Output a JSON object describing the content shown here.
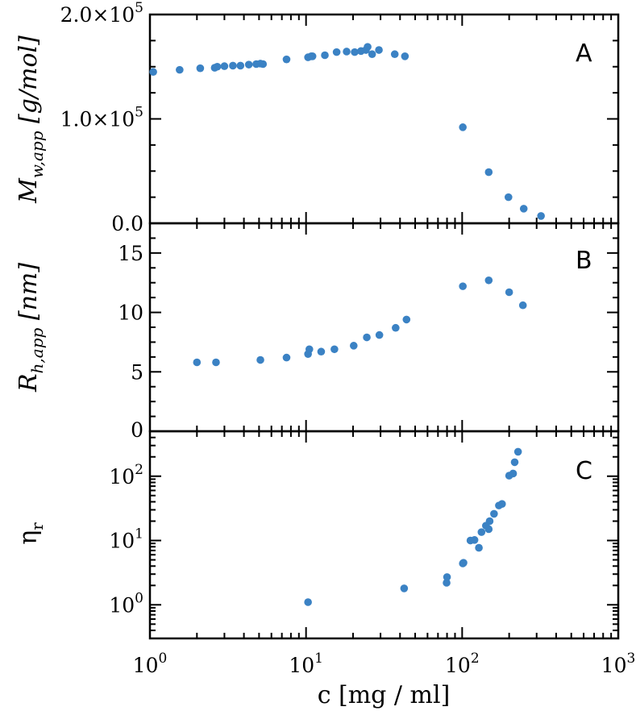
{
  "chart_data": [
    {
      "type": "scatter",
      "panel": "A",
      "ylabel": "M_{w,app} [g/mol]",
      "ylabel_parts": {
        "main": "M",
        "sub": "w,app",
        "unit": " [g/mol]"
      },
      "xscale": "log",
      "xlim": [
        1,
        1000
      ],
      "yscale": "linear",
      "ylim": [
        0,
        200000
      ],
      "yticks": [
        {
          "value": 0,
          "mantissa": "0.0",
          "exp": ""
        },
        {
          "value": 100000,
          "mantissa": "1.0×10",
          "exp": "5"
        },
        {
          "value": 200000,
          "mantissa": "2.0×10",
          "exp": "5"
        }
      ],
      "color": "#3b82c4",
      "x": [
        1.05,
        1.55,
        2.1,
        2.6,
        2.7,
        3.0,
        3.4,
        3.8,
        4.3,
        4.8,
        5.1,
        5.3,
        7.5,
        10.3,
        10.8,
        11.0,
        13.2,
        15.7,
        18.2,
        20.5,
        22.5,
        24.2,
        24.8,
        26.5,
        29.3,
        37.0,
        43.0,
        101,
        148,
        198,
        248,
        320
      ],
      "y": [
        145000,
        147000,
        148500,
        149000,
        150000,
        150500,
        151000,
        151000,
        152000,
        152500,
        153000,
        152500,
        157000,
        159000,
        160000,
        160000,
        161000,
        164000,
        164500,
        164000,
        165000,
        166000,
        169000,
        162000,
        166000,
        162000,
        160000,
        92000,
        49000,
        25000,
        14000,
        7000
      ]
    },
    {
      "type": "scatter",
      "panel": "B",
      "ylabel": "R_{h,app} [nm]",
      "ylabel_parts": {
        "main": "R",
        "sub": "h,app",
        "unit": " [nm]"
      },
      "xscale": "log",
      "xlim": [
        1,
        1000
      ],
      "yscale": "linear",
      "ylim": [
        0,
        17.5
      ],
      "yticks": [
        {
          "value": 0,
          "label": "0"
        },
        {
          "value": 5,
          "label": "5"
        },
        {
          "value": 10,
          "label": "10"
        },
        {
          "value": 15,
          "label": "15"
        }
      ],
      "color": "#3b82c4",
      "x": [
        2.0,
        2.65,
        5.1,
        7.5,
        10.3,
        10.5,
        12.5,
        15.2,
        20.2,
        24.5,
        29.5,
        37.5,
        44.0,
        101,
        148,
        200,
        245
      ],
      "y": [
        5.8,
        5.8,
        6.0,
        6.2,
        6.5,
        6.9,
        6.7,
        6.9,
        7.2,
        7.9,
        8.1,
        8.7,
        9.4,
        12.2,
        12.7,
        11.7,
        10.6
      ]
    },
    {
      "type": "scatter",
      "panel": "C",
      "ylabel": "η_r",
      "ylabel_parts": {
        "main": "η",
        "sub": "r",
        "unit": ""
      },
      "xlabel": "c [mg / ml]",
      "xscale": "log",
      "xlim": [
        1,
        1000
      ],
      "yscale": "log",
      "ylim": [
        0.3,
        500
      ],
      "xticks": [
        {
          "value": 1,
          "base": "10",
          "exp": "0"
        },
        {
          "value": 10,
          "base": "10",
          "exp": "1"
        },
        {
          "value": 100,
          "base": "10",
          "exp": "2"
        },
        {
          "value": 1000,
          "base": "10",
          "exp": "3"
        }
      ],
      "yticks": [
        {
          "value": 1,
          "base": "10",
          "exp": "0"
        },
        {
          "value": 10,
          "base": "10",
          "exp": "1"
        },
        {
          "value": 100,
          "base": "10",
          "exp": "2"
        }
      ],
      "color": "#3b82c4",
      "x": [
        10.3,
        42.5,
        79.5,
        80.0,
        101,
        102,
        113,
        120,
        128,
        133,
        142,
        148,
        150,
        160,
        172,
        180,
        200,
        212,
        217,
        228
      ],
      "y": [
        1.1,
        1.8,
        2.2,
        2.7,
        4.4,
        4.5,
        10.0,
        10.2,
        7.7,
        13.5,
        17.0,
        15.0,
        20.0,
        26.0,
        35.0,
        37.0,
        102,
        110,
        165,
        240
      ]
    }
  ],
  "panel_labels": [
    "A",
    "B",
    "C"
  ],
  "xlabel": "c [mg / ml]"
}
